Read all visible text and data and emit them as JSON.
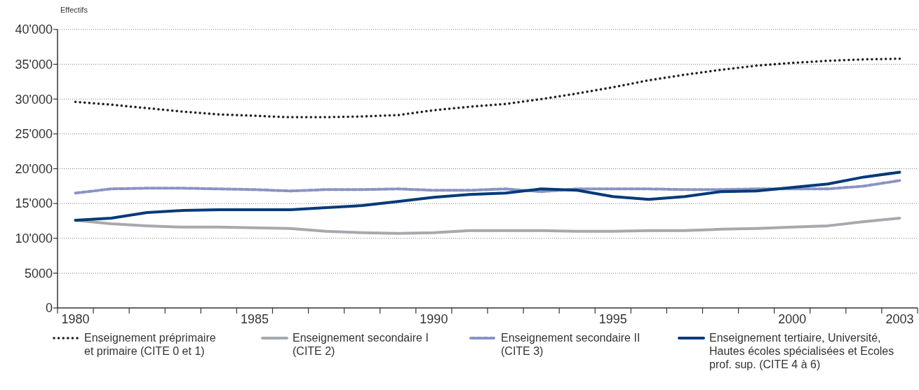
{
  "chart_data": {
    "type": "line",
    "ylabel": "Effectifs",
    "categories": [
      "1980",
      null,
      null,
      null,
      null,
      "1985",
      null,
      null,
      null,
      null,
      "1990",
      null,
      null,
      null,
      null,
      "1995",
      null,
      null,
      null,
      null,
      "2000",
      null,
      null,
      "2003"
    ],
    "ylim": [
      0,
      40000
    ],
    "yticks": [
      0,
      5000,
      {
        "value": 10000,
        "label": "10'000"
      },
      {
        "value": 15000,
        "label": "15'000"
      },
      {
        "value": 20000,
        "label": "20'000"
      },
      {
        "value": 25000,
        "label": "25'000"
      },
      {
        "value": 30000,
        "label": "30'000"
      },
      {
        "value": 35000,
        "label": "35'000"
      },
      {
        "value": 40000,
        "label": "40'000"
      }
    ],
    "grid": "y",
    "legend": "bottom",
    "marker": "none",
    "series": [
      {
        "name": "Enseignement préprimaire et primaire (CITE 0 et 1)",
        "color": "#231f20",
        "line_style": "dotted",
        "values": [
          29600,
          29200,
          28700,
          28200,
          27800,
          27600,
          27400,
          27400,
          27500,
          27700,
          28400,
          28900,
          29300,
          30000,
          30800,
          31700,
          32700,
          33500,
          34200,
          34800,
          35200,
          35500,
          35700,
          35800
        ]
      },
      {
        "name": "Enseignement secondaire I (CITE 2)",
        "color": "#a7a9ac",
        "line_style": "solid",
        "values": [
          12600,
          12100,
          11800,
          11600,
          11600,
          11500,
          11400,
          11000,
          10800,
          10700,
          10800,
          11100,
          11100,
          11100,
          11000,
          11000,
          11100,
          11100,
          11300,
          11400,
          11600,
          11800,
          12400,
          12900
        ]
      },
      {
        "name": "Enseignement secondaire II (CITE 3)",
        "color": "#8a93c4",
        "line_style": "dashed",
        "values": [
          16500,
          17100,
          17200,
          17200,
          17100,
          17000,
          16800,
          17000,
          17000,
          17100,
          16900,
          16900,
          17100,
          16700,
          17100,
          17100,
          17100,
          17000,
          17000,
          17100,
          17100,
          17100,
          17500,
          18300
        ]
      },
      {
        "name": "Enseignement tertiaire, Université, Hautes écoles spécialisées et Ecoles prof. sup. (CITE 4 à 6)",
        "color": "#003a78",
        "line_style": "solid",
        "values": [
          12600,
          12900,
          13700,
          14000,
          14100,
          14100,
          14100,
          14400,
          14700,
          15300,
          15900,
          16300,
          16500,
          17100,
          16900,
          16000,
          15600,
          16000,
          16700,
          16800,
          17300,
          17800,
          18800,
          19500
        ]
      }
    ]
  }
}
